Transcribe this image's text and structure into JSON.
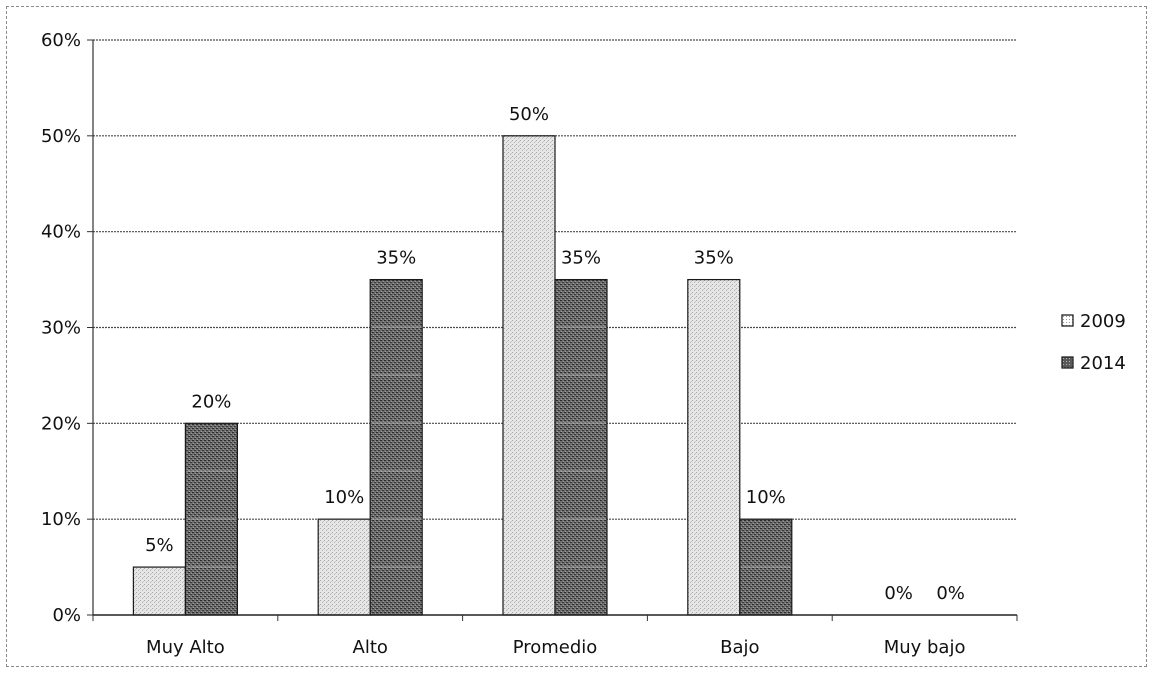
{
  "chart_data": {
    "type": "bar",
    "title": "",
    "xlabel": "",
    "ylabel": "",
    "categories": [
      "Muy Alto",
      "Alto",
      "Promedio",
      "Bajo",
      "Muy bajo"
    ],
    "series": [
      {
        "name": "2009",
        "values": [
          5,
          10,
          50,
          35,
          0
        ],
        "color": "#d9d9d9"
      },
      {
        "name": "2014",
        "values": [
          20,
          35,
          35,
          10,
          0
        ],
        "color": "#4d4d4d"
      }
    ],
    "data_labels": [
      [
        "5%",
        "10%",
        "50%",
        "35%",
        "0%"
      ],
      [
        "20%",
        "35%",
        "35%",
        "10%",
        "0%"
      ]
    ],
    "ylim": [
      0,
      60
    ],
    "yticks": [
      0,
      10,
      20,
      30,
      40,
      50,
      60
    ],
    "ytick_labels": [
      "0%",
      "10%",
      "20%",
      "30%",
      "40%",
      "50%",
      "60%"
    ],
    "grid": true,
    "legend_position": "right"
  }
}
